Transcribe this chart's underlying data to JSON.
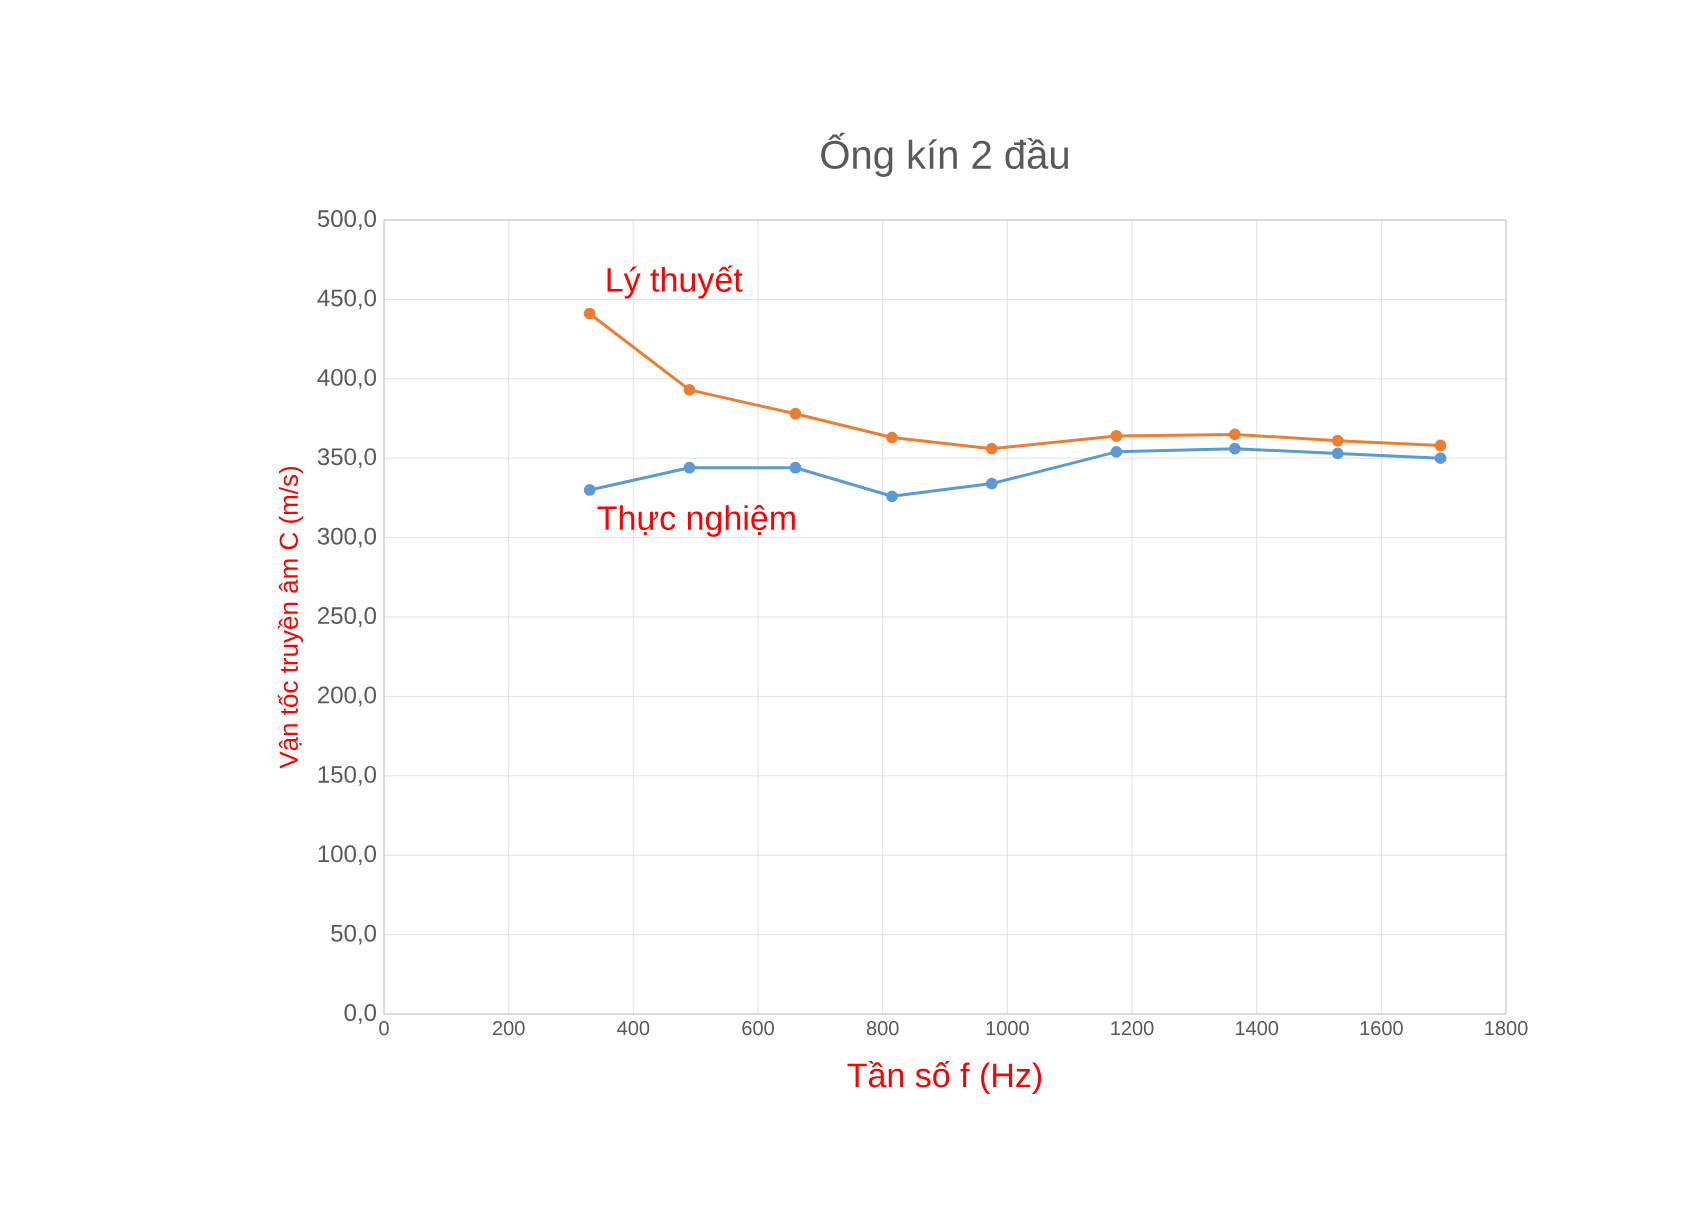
{
  "chart_data": {
    "type": "line",
    "title": "Ống kín 2 đầu",
    "xlabel": "Tần số f (Hz)",
    "ylabel": "Vận tốc truyền âm C (m/s)",
    "x": [
      330,
      490,
      660,
      815,
      975,
      1175,
      1365,
      1530,
      1695
    ],
    "series": [
      {
        "name": "Lý thuyết",
        "color": "#ed7d31",
        "values": [
          441,
          393,
          378,
          363,
          356,
          364,
          365,
          361,
          358
        ]
      },
      {
        "name": "Thực nghiệm",
        "color": "#5b9bd5",
        "values": [
          330,
          344,
          344,
          326,
          334,
          354,
          356,
          353,
          350
        ]
      }
    ],
    "xlim": [
      0,
      1800
    ],
    "xticks": [
      0,
      200,
      400,
      600,
      800,
      1000,
      1200,
      1400,
      1600,
      1800
    ],
    "ylim": [
      0,
      500
    ],
    "yticks": [
      {
        "value": 0,
        "label": "0,0"
      },
      {
        "value": 50,
        "label": "50,0"
      },
      {
        "value": 100,
        "label": "100,0"
      },
      {
        "value": 150,
        "label": "150,0"
      },
      {
        "value": 200,
        "label": "200,0"
      },
      {
        "value": 250,
        "label": "250,0"
      },
      {
        "value": 300,
        "label": "300,0"
      },
      {
        "value": 350,
        "label": "350,0"
      },
      {
        "value": 400,
        "label": "400,0"
      },
      {
        "value": 450,
        "label": "450,0"
      },
      {
        "value": 500,
        "label": "500,0"
      }
    ],
    "grid": true,
    "marker": "circle",
    "line_style": "solid"
  }
}
